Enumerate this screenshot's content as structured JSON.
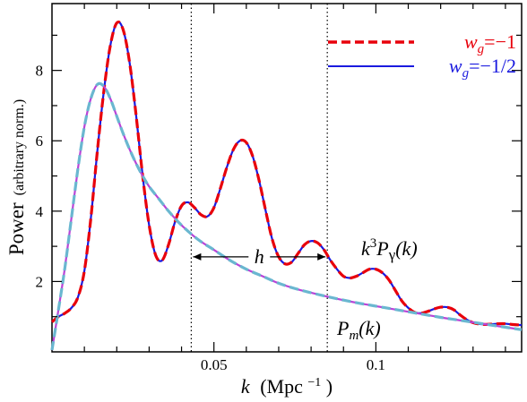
{
  "chart_data": {
    "type": "line",
    "xlabel": {
      "var": "k",
      "unit": "(Mpc",
      "sup": "−1",
      "close": ")"
    },
    "ylabel": {
      "main": "Power",
      "note": "(arbitrary norm.)"
    },
    "xlim": [
      0.0,
      0.145
    ],
    "ylim": [
      0.0,
      9.9
    ],
    "x_ticks": [
      {
        "value": 0.05,
        "label": "0.05"
      },
      {
        "value": 0.1,
        "label": "0.1"
      }
    ],
    "y_ticks": [
      {
        "value": 2,
        "label": "2"
      },
      {
        "value": 4,
        "label": "4"
      },
      {
        "value": 6,
        "label": "6"
      },
      {
        "value": 8,
        "label": "8"
      }
    ],
    "legend": {
      "placement": "top-right",
      "entries": [
        {
          "w": "w",
          "sub": "g",
          "eq": "=−1",
          "color": "#e8000b",
          "dash": true
        },
        {
          "w": "w",
          "sub": "g",
          "eq": "=−1/2",
          "color": "#1a1adf",
          "dash": false
        }
      ]
    },
    "vlines": [
      0.043,
      0.085
    ],
    "annotations": {
      "h_label": "h",
      "h_arrow_from": 0.043,
      "h_arrow_to": 0.085,
      "curve1_label": {
        "k": "k",
        "pow": "3",
        "P": "P",
        "sub": "γ",
        "arg": "(k)"
      },
      "curve2_label": {
        "P": "P",
        "sub": "m",
        "arg": "(k)"
      }
    },
    "series": [
      {
        "id": "photon",
        "color_a": "#1a1adf",
        "color_b": "#e8000b",
        "points": [
          [
            0.0,
            0.85
          ],
          [
            0.002,
            1.0
          ],
          [
            0.004,
            1.1
          ],
          [
            0.006,
            1.25
          ],
          [
            0.008,
            1.55
          ],
          [
            0.01,
            2.3
          ],
          [
            0.012,
            3.8
          ],
          [
            0.014,
            5.7
          ],
          [
            0.016,
            7.4
          ],
          [
            0.018,
            8.7
          ],
          [
            0.02,
            9.35
          ],
          [
            0.022,
            9.15
          ],
          [
            0.024,
            8.2
          ],
          [
            0.026,
            6.7
          ],
          [
            0.028,
            5.0
          ],
          [
            0.03,
            3.6
          ],
          [
            0.032,
            2.75
          ],
          [
            0.034,
            2.6
          ],
          [
            0.036,
            3.05
          ],
          [
            0.038,
            3.7
          ],
          [
            0.04,
            4.15
          ],
          [
            0.042,
            4.25
          ],
          [
            0.044,
            4.1
          ],
          [
            0.046,
            3.9
          ],
          [
            0.048,
            3.85
          ],
          [
            0.05,
            4.1
          ],
          [
            0.052,
            4.65
          ],
          [
            0.054,
            5.25
          ],
          [
            0.056,
            5.75
          ],
          [
            0.058,
            6.0
          ],
          [
            0.06,
            5.95
          ],
          [
            0.062,
            5.55
          ],
          [
            0.064,
            4.85
          ],
          [
            0.066,
            4.0
          ],
          [
            0.068,
            3.2
          ],
          [
            0.07,
            2.7
          ],
          [
            0.072,
            2.5
          ],
          [
            0.074,
            2.55
          ],
          [
            0.076,
            2.8
          ],
          [
            0.078,
            3.05
          ],
          [
            0.08,
            3.15
          ],
          [
            0.082,
            3.1
          ],
          [
            0.084,
            2.9
          ],
          [
            0.086,
            2.6
          ],
          [
            0.088,
            2.35
          ],
          [
            0.09,
            2.15
          ],
          [
            0.092,
            2.1
          ],
          [
            0.094,
            2.15
          ],
          [
            0.096,
            2.25
          ],
          [
            0.098,
            2.35
          ],
          [
            0.1,
            2.35
          ],
          [
            0.102,
            2.25
          ],
          [
            0.104,
            2.05
          ],
          [
            0.106,
            1.75
          ],
          [
            0.108,
            1.45
          ],
          [
            0.11,
            1.25
          ],
          [
            0.112,
            1.12
          ],
          [
            0.114,
            1.1
          ],
          [
            0.116,
            1.15
          ],
          [
            0.118,
            1.22
          ],
          [
            0.12,
            1.27
          ],
          [
            0.122,
            1.27
          ],
          [
            0.124,
            1.2
          ],
          [
            0.126,
            1.05
          ],
          [
            0.128,
            0.92
          ],
          [
            0.13,
            0.83
          ],
          [
            0.132,
            0.79
          ],
          [
            0.134,
            0.78
          ],
          [
            0.136,
            0.79
          ],
          [
            0.138,
            0.8
          ],
          [
            0.14,
            0.8
          ],
          [
            0.142,
            0.78
          ],
          [
            0.145,
            0.76
          ]
        ]
      },
      {
        "id": "matter",
        "color_a": "#b845d8",
        "color_b": "#6ab7d0",
        "points": [
          [
            0.0,
            0.05
          ],
          [
            0.002,
            1.2
          ],
          [
            0.004,
            2.4
          ],
          [
            0.006,
            3.8
          ],
          [
            0.008,
            5.2
          ],
          [
            0.01,
            6.4
          ],
          [
            0.012,
            7.2
          ],
          [
            0.014,
            7.6
          ],
          [
            0.016,
            7.55
          ],
          [
            0.018,
            7.2
          ],
          [
            0.02,
            6.7
          ],
          [
            0.022,
            6.2
          ],
          [
            0.024,
            5.75
          ],
          [
            0.026,
            5.35
          ],
          [
            0.028,
            5.0
          ],
          [
            0.03,
            4.7
          ],
          [
            0.033,
            4.35
          ],
          [
            0.036,
            4.0
          ],
          [
            0.04,
            3.6
          ],
          [
            0.045,
            3.2
          ],
          [
            0.05,
            2.9
          ],
          [
            0.055,
            2.6
          ],
          [
            0.06,
            2.35
          ],
          [
            0.065,
            2.15
          ],
          [
            0.07,
            1.95
          ],
          [
            0.075,
            1.8
          ],
          [
            0.08,
            1.68
          ],
          [
            0.085,
            1.57
          ],
          [
            0.09,
            1.47
          ],
          [
            0.095,
            1.38
          ],
          [
            0.1,
            1.3
          ],
          [
            0.105,
            1.22
          ],
          [
            0.11,
            1.14
          ],
          [
            0.115,
            1.06
          ],
          [
            0.12,
            0.98
          ],
          [
            0.125,
            0.91
          ],
          [
            0.13,
            0.84
          ],
          [
            0.135,
            0.77
          ],
          [
            0.14,
            0.7
          ],
          [
            0.145,
            0.63
          ]
        ]
      }
    ]
  }
}
